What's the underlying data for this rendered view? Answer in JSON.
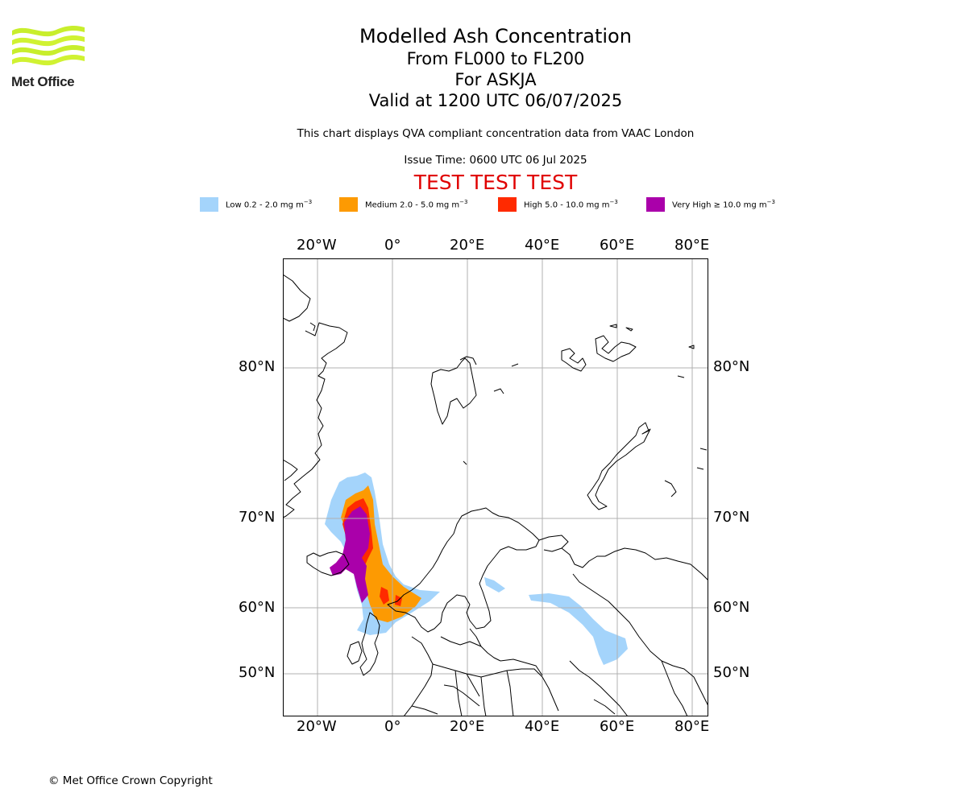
{
  "logo": {
    "text": "Met Office",
    "colors": [
      "#c8ee2c",
      "#d8f53a"
    ]
  },
  "title": {
    "line1": "Modelled Ash Concentration",
    "line2": "From FL000 to FL200",
    "line3": "For ASKJA",
    "line4": "Valid at 1200 UTC 06/07/2025"
  },
  "description": "This chart displays QVA compliant concentration data from VAAC London",
  "issue_time": "Issue Time: 0600 UTC 06 Jul 2025",
  "test_banner": "TEST TEST TEST",
  "legend": [
    {
      "label": "Low 0.2 - 2.0 mg m",
      "sup": "−3",
      "color": "#a4d4fb"
    },
    {
      "label": "Medium 2.0 - 5.0 mg m",
      "sup": "−3",
      "color": "#fd9a02"
    },
    {
      "label": "High 5.0 - 10.0 mg m",
      "sup": "−3",
      "color": "#ff2a00"
    },
    {
      "label": "Very High  ≥  10.0 mg m",
      "sup": "−3",
      "color": "#aa00aa"
    }
  ],
  "map": {
    "lon_labels": [
      "20°W",
      "0°",
      "20°E",
      "40°E",
      "60°E",
      "80°E"
    ],
    "lat_labels": [
      "80°N",
      "70°N",
      "60°N",
      "50°N"
    ],
    "gridline_color": "#b0b0b0",
    "coast_color": "#000000"
  },
  "copyright": "© Met Office Crown Copyright"
}
